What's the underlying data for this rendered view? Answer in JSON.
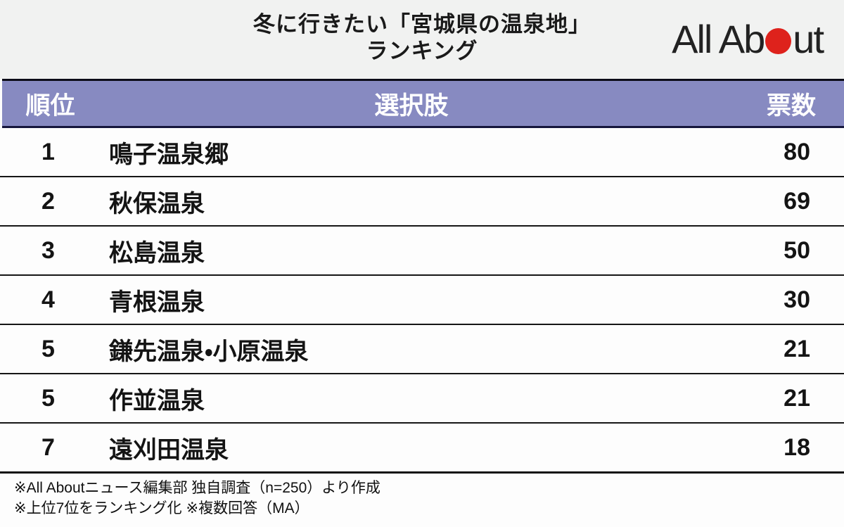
{
  "header": {
    "title_line1": "冬に行きたい「宮城県の温泉地」",
    "title_line2": "ランキング",
    "logo": {
      "part1": "All Ab",
      "part2": "ut",
      "full_name": "All About"
    }
  },
  "table": {
    "columns": {
      "rank": "順位",
      "choice": "選択肢",
      "votes": "票数"
    },
    "rows": [
      {
        "rank": "1",
        "choice": "鳴子温泉郷",
        "votes": "80"
      },
      {
        "rank": "2",
        "choice": "秋保温泉",
        "votes": "69"
      },
      {
        "rank": "3",
        "choice": "松島温泉",
        "votes": "50"
      },
      {
        "rank": "4",
        "choice": "青根温泉",
        "votes": "30"
      },
      {
        "rank": "5",
        "choice": "鎌先温泉・小原温泉",
        "votes": "21"
      },
      {
        "rank": "5",
        "choice": "作並温泉",
        "votes": "21"
      },
      {
        "rank": "7",
        "choice": "遠刈田温泉",
        "votes": "18"
      }
    ]
  },
  "footer": {
    "notes": [
      "※All Aboutニュース編集部 独自調査（n=250）より作成",
      "※上位7位をランキング化 ※複数回答（MA）"
    ]
  },
  "colors": {
    "header_bg": "#878ac1",
    "header_text": "#ffffff",
    "title_bg": "#f1f2f1",
    "logo_red": "#de221c",
    "body_text": "#141414"
  },
  "chart_data": {
    "type": "table",
    "title": "冬に行きたい「宮城県の温泉地」ランキング",
    "columns": [
      "順位",
      "選択肢",
      "票数"
    ],
    "rows": [
      [
        1,
        "鳴子温泉郷",
        80
      ],
      [
        2,
        "秋保温泉",
        69
      ],
      [
        3,
        "松島温泉",
        50
      ],
      [
        4,
        "青根温泉",
        30
      ],
      [
        5,
        "鎌先温泉・小原温泉",
        21
      ],
      [
        5,
        "作並温泉",
        21
      ],
      [
        7,
        "遠刈田温泉",
        18
      ]
    ],
    "notes": [
      "※All Aboutニュース編集部 独自調査（n=250）より作成",
      "※上位7位をランキング化 ※複数回答（MA）"
    ]
  }
}
